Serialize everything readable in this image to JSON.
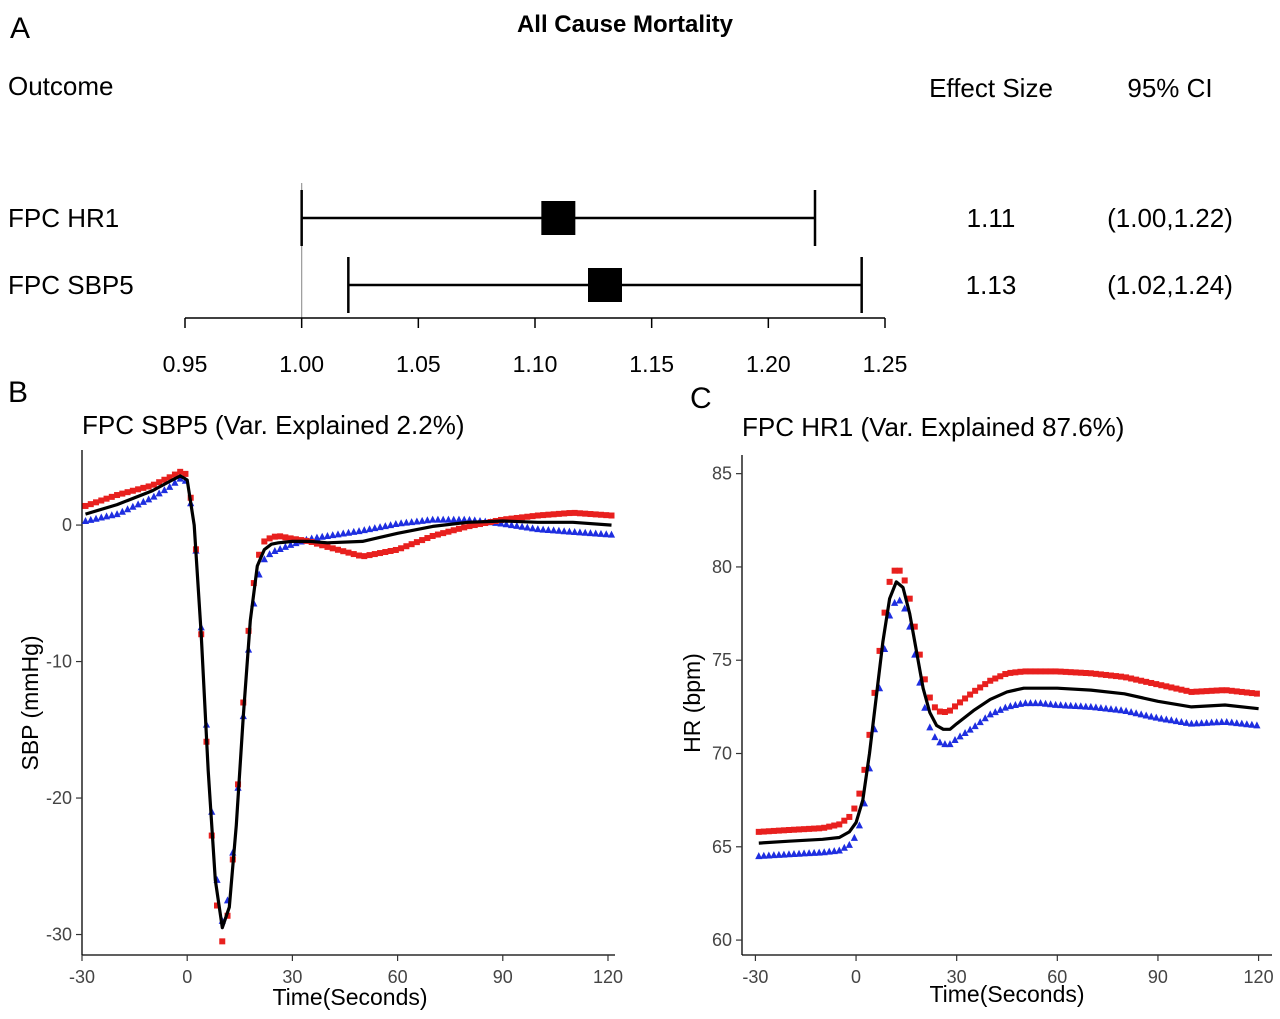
{
  "chart_data": [
    {
      "panel": "A",
      "type": "forest",
      "title": "All Cause Mortality",
      "col_outcome": "Outcome",
      "col_effect": "Effect Size",
      "col_ci": "95% CI",
      "rows": [
        {
          "label": "FPC HR1",
          "effect": 1.11,
          "lower": 1.0,
          "upper": 1.22,
          "effect_text": "1.11",
          "ci_text": "(1.00,1.22)"
        },
        {
          "label": "FPC SBP5",
          "effect": 1.13,
          "lower": 1.02,
          "upper": 1.24,
          "effect_text": "1.13",
          "ci_text": "(1.02,1.24)"
        }
      ],
      "reference": 1.0,
      "xlim": [
        0.95,
        1.25
      ],
      "ticks": [
        0.95,
        1.0,
        1.05,
        1.1,
        1.15,
        1.2,
        1.25
      ],
      "tick_labels": [
        "0.95",
        "1.00",
        "1.05",
        "1.10",
        "1.15",
        "1.20",
        "1.25"
      ]
    },
    {
      "panel": "B",
      "type": "line",
      "title": "FPC SBP5 (Var. Explained 2.2%)",
      "xlabel": "Time(Seconds)",
      "ylabel": "SBP (mmHg)",
      "xlim": [
        -30,
        122
      ],
      "ylim": [
        -31.5,
        5.5
      ],
      "xticks": [
        -30,
        0,
        30,
        60,
        90,
        120
      ],
      "yticks": [
        -30,
        -20,
        -10,
        0
      ],
      "colors": {
        "mean": "#000000",
        "plus": "#e8201e",
        "minus": "#1e2ee0"
      },
      "series": [
        {
          "role": "mean",
          "marker": "line",
          "x": [
            -29,
            -20,
            -10,
            -5,
            -2,
            0,
            2,
            4,
            6,
            8,
            10,
            12,
            14,
            16,
            18,
            20,
            22,
            24,
            26,
            28,
            30,
            35,
            40,
            50,
            60,
            70,
            80,
            90,
            100,
            110,
            121
          ],
          "y": [
            0.8,
            1.5,
            2.5,
            3.2,
            3.6,
            3.3,
            0,
            -8,
            -18,
            -26,
            -29.5,
            -28,
            -22,
            -14,
            -7,
            -3,
            -1.8,
            -1.4,
            -1.3,
            -1.25,
            -1.2,
            -1.2,
            -1.3,
            -1.2,
            -0.6,
            -0.1,
            0.2,
            0.3,
            0.2,
            0.2,
            0
          ]
        },
        {
          "role": "plus",
          "marker": "square",
          "x": [
            -29,
            -20,
            -10,
            -5,
            -2,
            0,
            2,
            4,
            6,
            8,
            10,
            12,
            14,
            16,
            18,
            20,
            22,
            24,
            26,
            28,
            30,
            35,
            40,
            50,
            60,
            70,
            80,
            90,
            100,
            110,
            121
          ],
          "y": [
            1.4,
            2.2,
            2.9,
            3.5,
            3.9,
            3.7,
            0.3,
            -8,
            -18.5,
            -27,
            -30.5,
            -28,
            -21,
            -13,
            -6,
            -2.5,
            -1.2,
            -0.9,
            -0.8,
            -0.9,
            -1.0,
            -1.2,
            -1.6,
            -2.3,
            -1.8,
            -0.8,
            -0.1,
            0.4,
            0.7,
            0.9,
            0.7
          ]
        },
        {
          "role": "minus",
          "marker": "triangle",
          "x": [
            -29,
            -20,
            -10,
            -5,
            -2,
            0,
            2,
            4,
            6,
            8,
            10,
            12,
            14,
            16,
            18,
            20,
            22,
            24,
            26,
            28,
            30,
            35,
            40,
            50,
            60,
            70,
            80,
            90,
            100,
            110,
            121
          ],
          "y": [
            0.3,
            0.8,
            2.0,
            2.8,
            3.4,
            3.2,
            0,
            -7.5,
            -17,
            -25,
            -29,
            -27,
            -21,
            -14,
            -7.5,
            -4,
            -2.5,
            -2,
            -1.8,
            -1.6,
            -1.4,
            -1.0,
            -0.8,
            -0.4,
            0.1,
            0.4,
            0.4,
            0.1,
            -0.3,
            -0.5,
            -0.7
          ]
        }
      ]
    },
    {
      "panel": "C",
      "type": "line",
      "title": "FPC HR1 (Var. Explained 87.6%)",
      "xlabel": "Time(Seconds)",
      "ylabel": "HR (bpm)",
      "xlim": [
        -34,
        124
      ],
      "ylim": [
        59.2,
        86
      ],
      "xticks": [
        -30,
        0,
        30,
        60,
        90,
        120
      ],
      "yticks": [
        60,
        65,
        70,
        75,
        80,
        85
      ],
      "colors": {
        "mean": "#000000",
        "plus": "#e8201e",
        "minus": "#1e2ee0"
      },
      "series": [
        {
          "role": "mean",
          "marker": "line",
          "x": [
            -29,
            -20,
            -10,
            -5,
            -2,
            0,
            2,
            4,
            6,
            8,
            10,
            12,
            14,
            16,
            18,
            20,
            22,
            24,
            26,
            28,
            30,
            35,
            40,
            45,
            50,
            55,
            60,
            70,
            80,
            90,
            100,
            110,
            120
          ],
          "y": [
            65.2,
            65.3,
            65.4,
            65.5,
            65.8,
            66.3,
            67.5,
            70,
            73,
            76,
            78.3,
            79.2,
            78.9,
            77.5,
            75.5,
            73.5,
            72.2,
            71.5,
            71.3,
            71.3,
            71.6,
            72.3,
            72.9,
            73.3,
            73.5,
            73.5,
            73.5,
            73.4,
            73.2,
            72.8,
            72.5,
            72.6,
            72.4
          ]
        },
        {
          "role": "plus",
          "marker": "square",
          "x": [
            -29,
            -20,
            -10,
            -5,
            -2,
            0,
            2,
            4,
            6,
            8,
            10,
            12,
            14,
            16,
            18,
            20,
            22,
            24,
            26,
            28,
            30,
            35,
            40,
            45,
            50,
            55,
            60,
            70,
            80,
            90,
            100,
            110,
            120
          ],
          "y": [
            65.8,
            65.9,
            66.0,
            66.2,
            66.6,
            67.2,
            68.5,
            71,
            74,
            77,
            79.2,
            80,
            79.6,
            78.3,
            76.3,
            74.3,
            73.0,
            72.3,
            72.2,
            72.3,
            72.6,
            73.3,
            73.9,
            74.3,
            74.4,
            74.4,
            74.4,
            74.3,
            74.1,
            73.7,
            73.3,
            73.4,
            73.2
          ]
        },
        {
          "role": "minus",
          "marker": "triangle",
          "x": [
            -29,
            -20,
            -10,
            -5,
            -2,
            0,
            2,
            4,
            6,
            8,
            10,
            12,
            14,
            16,
            18,
            20,
            22,
            24,
            26,
            28,
            30,
            35,
            40,
            45,
            50,
            55,
            60,
            70,
            80,
            90,
            100,
            110,
            120
          ],
          "y": [
            64.5,
            64.6,
            64.7,
            64.8,
            65.1,
            65.6,
            66.7,
            69.2,
            72,
            75,
            77.4,
            78.3,
            78.1,
            76.8,
            74.8,
            72.8,
            71.4,
            70.7,
            70.5,
            70.5,
            70.8,
            71.4,
            72.1,
            72.5,
            72.7,
            72.7,
            72.6,
            72.5,
            72.3,
            71.9,
            71.6,
            71.7,
            71.5
          ]
        }
      ]
    }
  ],
  "panels": {
    "a": "A",
    "b": "B",
    "c": "C"
  }
}
